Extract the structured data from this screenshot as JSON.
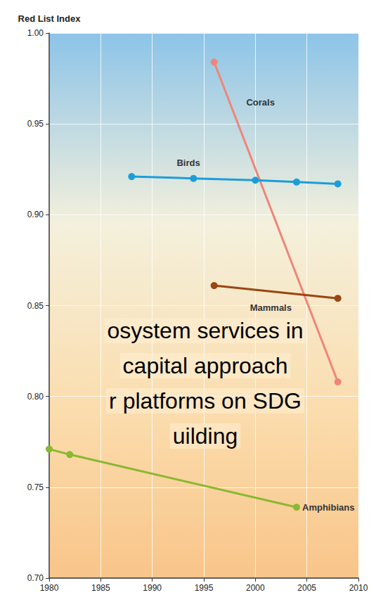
{
  "chart_data": {
    "type": "line",
    "y_label": "Red List Index",
    "xlim": [
      1980,
      2010
    ],
    "xticks": [
      1980,
      1985,
      1990,
      1995,
      2000,
      2005,
      2010
    ],
    "ylim": [
      0.7,
      1.0
    ],
    "yticks": [
      {
        "value": 0.7,
        "label": "0.70"
      },
      0.75,
      {
        "value": 0.8,
        "label": "0.80"
      },
      0.85,
      {
        "value": 0.9,
        "label": "0.90"
      },
      0.95,
      {
        "value": 1.0,
        "label": "1.00"
      }
    ],
    "grid": true,
    "marker": "circle",
    "series": [
      {
        "name": "Corals",
        "color": "#f0857a",
        "x": [
          1996,
          2008
        ],
        "values": [
          0.984,
          0.808
        ]
      },
      {
        "name": "Birds",
        "color": "#1a9ed9",
        "x": [
          1988,
          1994,
          2000,
          2004,
          2008
        ],
        "values": [
          0.921,
          0.92,
          0.919,
          0.918,
          0.917
        ]
      },
      {
        "name": "Mammals",
        "color": "#9a4512",
        "x": [
          1996,
          2008
        ],
        "values": [
          0.861,
          0.854
        ]
      },
      {
        "name": "Amphibians",
        "color": "#8ab832",
        "x": [
          1980,
          1982,
          2004
        ],
        "values": [
          0.771,
          0.768,
          0.739
        ]
      }
    ],
    "annotations": [
      "osystem services in",
      "capital approach",
      "r platforms on SDG",
      "uilding"
    ]
  }
}
